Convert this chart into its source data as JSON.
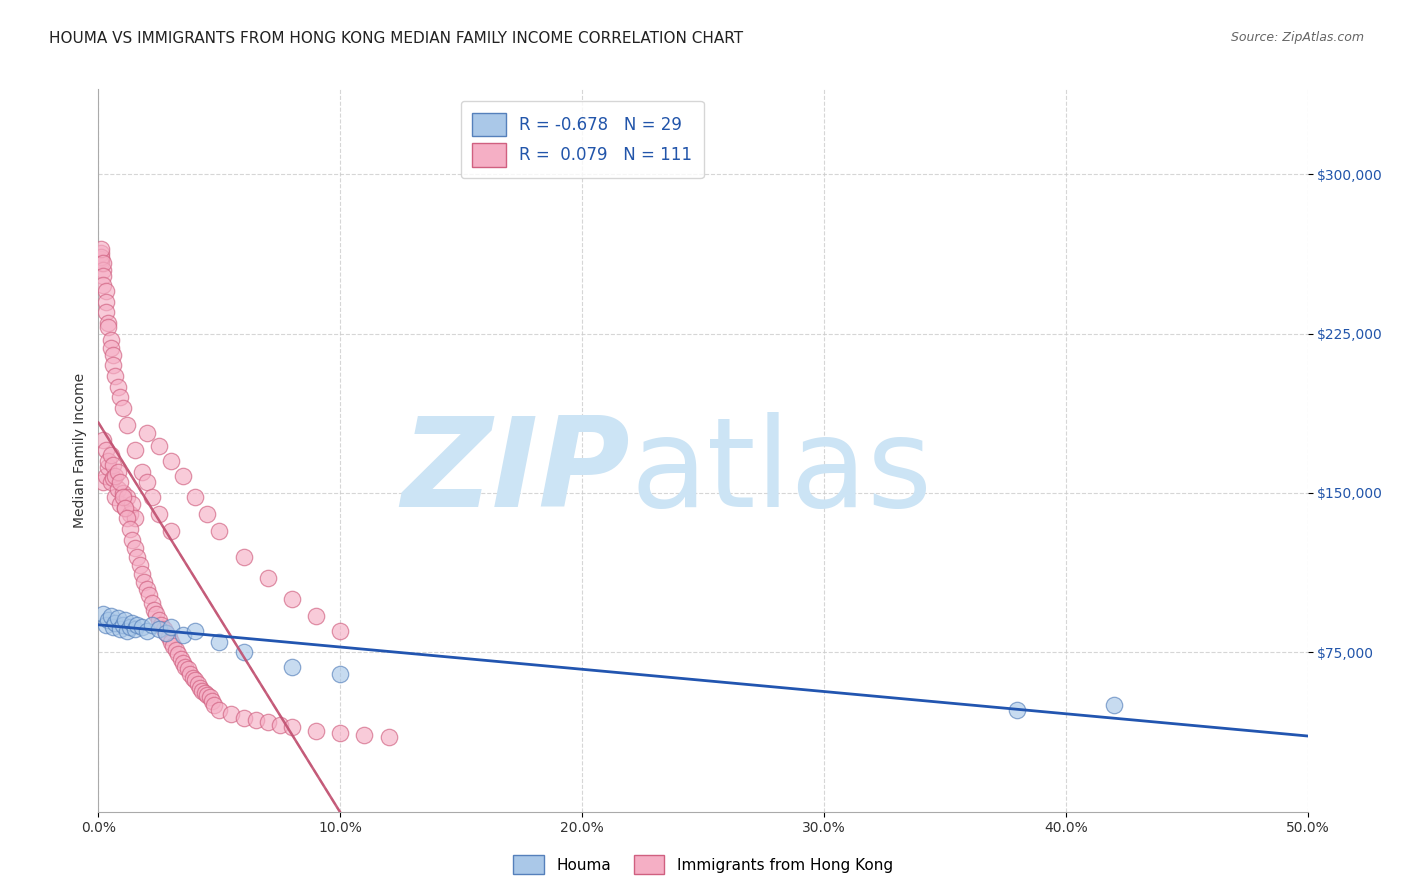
{
  "title": "HOUMA VS IMMIGRANTS FROM HONG KONG MEDIAN FAMILY INCOME CORRELATION CHART",
  "source": "Source: ZipAtlas.com",
  "xlim": [
    0.0,
    0.5
  ],
  "ylim": [
    0,
    340000
  ],
  "ylabel": "Median Family Income",
  "ylabel_vals": [
    75000,
    150000,
    225000,
    300000
  ],
  "xlabel_vals": [
    0.0,
    0.1,
    0.2,
    0.3,
    0.4,
    0.5
  ],
  "xlabel_labels": [
    "0.0%",
    "10.0%",
    "20.0%",
    "30.0%",
    "40.0%",
    "50.0%"
  ],
  "houma_color": "#aac8e8",
  "hk_color": "#f5afc5",
  "houma_edge": "#5580bb",
  "hk_edge": "#d06080",
  "houma_line_color": "#2255b0",
  "hk_solid_color": "#c05070",
  "hk_dash_color": "#e8b0c0",
  "watermark_color": "#cce4f5",
  "background_color": "#ffffff",
  "title_fontsize": 11,
  "axis_label_fontsize": 10,
  "tick_fontsize": 10,
  "source_fontsize": 9,
  "houma_x": [
    0.002,
    0.003,
    0.004,
    0.005,
    0.006,
    0.007,
    0.008,
    0.009,
    0.01,
    0.011,
    0.012,
    0.013,
    0.014,
    0.015,
    0.016,
    0.018,
    0.02,
    0.022,
    0.025,
    0.028,
    0.03,
    0.035,
    0.04,
    0.05,
    0.06,
    0.08,
    0.1,
    0.38,
    0.42
  ],
  "houma_y": [
    93000,
    88000,
    90000,
    92000,
    87000,
    89000,
    91000,
    86000,
    88000,
    90000,
    85000,
    87000,
    89000,
    86000,
    88000,
    87000,
    85000,
    88000,
    86000,
    84000,
    87000,
    83000,
    85000,
    80000,
    75000,
    68000,
    65000,
    48000,
    50000
  ],
  "hk_x": [
    0.002,
    0.003,
    0.004,
    0.005,
    0.006,
    0.007,
    0.008,
    0.009,
    0.01,
    0.011,
    0.012,
    0.013,
    0.014,
    0.015,
    0.002,
    0.003,
    0.004,
    0.005,
    0.006,
    0.007,
    0.008,
    0.009,
    0.01,
    0.011,
    0.012,
    0.013,
    0.014,
    0.015,
    0.016,
    0.017,
    0.018,
    0.019,
    0.02,
    0.021,
    0.022,
    0.023,
    0.024,
    0.025,
    0.026,
    0.027,
    0.028,
    0.029,
    0.03,
    0.031,
    0.032,
    0.033,
    0.034,
    0.035,
    0.036,
    0.037,
    0.038,
    0.039,
    0.04,
    0.041,
    0.042,
    0.043,
    0.044,
    0.045,
    0.046,
    0.047,
    0.048,
    0.05,
    0.055,
    0.06,
    0.065,
    0.07,
    0.075,
    0.08,
    0.09,
    0.1,
    0.11,
    0.12,
    0.001,
    0.001,
    0.001,
    0.001,
    0.001,
    0.002,
    0.002,
    0.002,
    0.002,
    0.003,
    0.003,
    0.003,
    0.004,
    0.004,
    0.005,
    0.005,
    0.006,
    0.006,
    0.007,
    0.008,
    0.009,
    0.01,
    0.012,
    0.015,
    0.018,
    0.02,
    0.022,
    0.025,
    0.03,
    0.02,
    0.025,
    0.03,
    0.035,
    0.04,
    0.045,
    0.05,
    0.06,
    0.07,
    0.08,
    0.09,
    0.1
  ],
  "hk_y": [
    155000,
    158000,
    162000,
    155000,
    157000,
    148000,
    152000,
    145000,
    150000,
    143000,
    148000,
    140000,
    145000,
    138000,
    175000,
    170000,
    165000,
    168000,
    163000,
    158000,
    160000,
    155000,
    148000,
    143000,
    138000,
    133000,
    128000,
    124000,
    120000,
    116000,
    112000,
    108000,
    105000,
    102000,
    98000,
    95000,
    93000,
    90000,
    88000,
    86000,
    84000,
    82000,
    80000,
    78000,
    76000,
    74000,
    72000,
    70000,
    68000,
    67000,
    65000,
    63000,
    62000,
    60000,
    58000,
    57000,
    56000,
    55000,
    54000,
    52000,
    50000,
    48000,
    46000,
    44000,
    43000,
    42000,
    41000,
    40000,
    38000,
    37000,
    36000,
    35000,
    260000,
    263000,
    258000,
    261000,
    265000,
    255000,
    258000,
    252000,
    248000,
    245000,
    240000,
    235000,
    230000,
    228000,
    222000,
    218000,
    215000,
    210000,
    205000,
    200000,
    195000,
    190000,
    182000,
    170000,
    160000,
    155000,
    148000,
    140000,
    132000,
    178000,
    172000,
    165000,
    158000,
    148000,
    140000,
    132000,
    120000,
    110000,
    100000,
    92000,
    85000
  ]
}
